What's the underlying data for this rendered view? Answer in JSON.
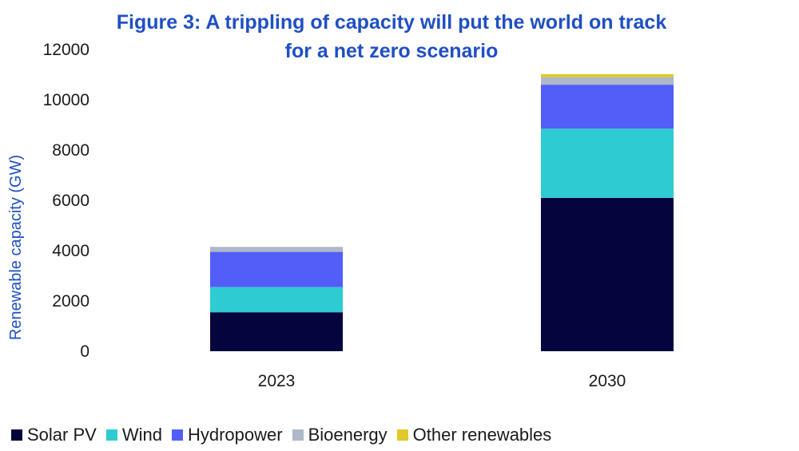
{
  "title": {
    "line1": "Figure 3: A trippling of capacity will put the world on track",
    "line2": "for a net zero scenario"
  },
  "chart_data": {
    "type": "bar",
    "stacked": true,
    "title": "Figure 3: A trippling of capacity will put the world on track for a net zero scenario",
    "xlabel": "",
    "ylabel": "Renewable capacity (GW)",
    "ylim": [
      0,
      12000
    ],
    "yticks": [
      "12000",
      "10000",
      "8000",
      "6000",
      "4000",
      "2000",
      "0"
    ],
    "categories": [
      "2023",
      "2030"
    ],
    "series": [
      {
        "name": "Solar PV",
        "color": "#05053e",
        "values": [
          1550,
          6100
        ]
      },
      {
        "name": "Wind",
        "color": "#2ecbd2",
        "values": [
          1000,
          2750
        ]
      },
      {
        "name": "Hydropower",
        "color": "#525ef7",
        "values": [
          1400,
          1750
        ]
      },
      {
        "name": "Bioenergy",
        "color": "#aeb8c9",
        "values": [
          200,
          300
        ]
      },
      {
        "name": "Other renewables",
        "color": "#e0c928",
        "values": [
          0,
          120
        ]
      }
    ],
    "grid": false,
    "legend": "bottom"
  }
}
